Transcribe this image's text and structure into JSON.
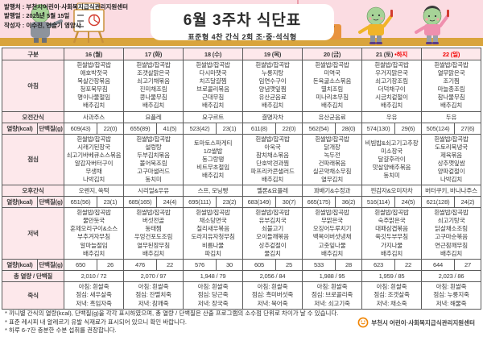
{
  "header": {
    "publisher_line": "발행처 : 부천시어린이·사회복지급식관리지원센터",
    "date_line": "발행일 : 2025년 5월 15일",
    "author_line": "작성자 : 이수진, 연슬기 영양사",
    "title": "6월 3주차 식단표",
    "subtitle": "표준형 4찬 간식 2회 조·중·석식형"
  },
  "colors": {
    "banner_pink": "#fbdce2",
    "floor_gold": "#d9a43c",
    "label_pink": "#fde8eb",
    "holiday_red": "#f20000",
    "logo_orange": "#f08300"
  },
  "table": {
    "corner_label": "구분",
    "row_labels": {
      "breakfast": "아침",
      "am_snack": "오전간식",
      "kcal": "열량(kcal)",
      "protein": "단백질(g)",
      "lunch": "점심",
      "pm_snack": "오후간식",
      "dinner": "저녁",
      "total": "총 열량 / 단백질",
      "porridge": "죽식"
    },
    "days": [
      {
        "date": "16 (월)",
        "red": false,
        "suffix": "",
        "breakfast": [
          "흰쌀밥/잡곡밥",
          "애호박젓국",
          "목살간장볶음",
          "청포묵무침",
          "명이나물절임",
          "배추김치"
        ],
        "am_snack": "사과주스",
        "kcal1": "609(43)",
        "protein1": "22(0)",
        "lunch": [
          "흰쌀밥/잡곡밥",
          "시래기된장국",
          "쇠고기바베큐소스볶음",
          "알감자버터구이",
          "무생채",
          "나박김치"
        ],
        "pm_snack": "오렌지, 쑥떡",
        "kcal2": "651(56)",
        "protein2": "23(1)",
        "dinner": [
          "흰쌀밥/잡곡밥",
          "물만둣국",
          "훈제오리구이&소스",
          "부추겨자무침",
          "알마늘절임",
          "배추김치"
        ],
        "kcal3": "650",
        "protein3": "26",
        "total": "2,010 / 72",
        "porridge": [
          "아침: 흰쌀죽",
          "점심: 새우살죽",
          "저녁: 흑임자죽"
        ]
      },
      {
        "date": "17 (화)",
        "red": false,
        "suffix": "",
        "breakfast": [
          "흰쌀밥/잡곡밥",
          "조갯살맑은국",
          "쇠고기채볶음",
          "진미채조림",
          "콩나물무침",
          "배추김치"
        ],
        "am_snack": "요플레",
        "kcal1": "655(89)",
        "protein1": "41(5)",
        "lunch": [
          "흰쌀밥/잡곡밥",
          "설렁탕",
          "두부김치볶음",
          "볼어묵조림",
          "고구마샐러드",
          "동치미"
        ],
        "pm_snack": "시리얼&우유",
        "kcal2": "685(165)",
        "protein2": "24(4)",
        "dinner": [
          "흰쌀밥/잡곡밥",
          "버섯전골",
          "동태찜",
          "우엉건포도조림",
          "열무된장무침",
          "배추김치"
        ],
        "kcal3": "476",
        "protein3": "22",
        "total": "2,070 / 97",
        "porridge": [
          "아침: 흰쌀죽",
          "점심: 잔멸치죽",
          "저녁: 참깨죽"
        ]
      },
      {
        "date": "18 (수)",
        "red": false,
        "suffix": "",
        "breakfast": [
          "흰쌀밥/잡곡밥",
          "다시마챗국",
          "치즈달걀찜",
          "브로콜리볶음",
          "근대무침",
          "배추김치"
        ],
        "am_snack": "요구르트",
        "kcal1": "523(42)",
        "protein1": "23(1)",
        "lunch": [
          "토마토스파게티",
          "1/2쌀밥",
          "동그랑땡",
          "비트무초절임",
          "배추김치"
        ],
        "pm_snack": "스프, 모닝빵",
        "kcal2": "695(111)",
        "protein2": "23(2)",
        "dinner": [
          "흰쌀밥/잡곡밥",
          "채소당면국",
          "칠리새우볶음",
          "도라지유자청무침",
          "비름나물",
          "파김치"
        ],
        "kcal3": "576",
        "protein3": "30",
        "total": "1,948 / 79",
        "porridge": [
          "아침: 흰쌀죽",
          "점심: 당근죽",
          "저녁: 장국죽"
        ]
      },
      {
        "date": "19 (목)",
        "red": false,
        "suffix": "",
        "breakfast": [
          "흰쌀밥/잡곡밥",
          "누룽지탕",
          "임연수구이",
          "양념깻잎찜",
          "유산균음료",
          "배추김치"
        ],
        "am_snack": "결명자차",
        "kcal1": "611(8)",
        "protein1": "22(0)",
        "lunch": [
          "흰쌀밥/잡곡밥",
          "아욱국",
          "참치채소볶음",
          "단호박견과찜",
          "파프리카콘샐러드",
          "배추김치"
        ],
        "pm_snack": "멜론&요플레",
        "kcal2": "683(149)",
        "protein2": "30(7)",
        "dinner": [
          "흰쌀밥/잡곡밥",
          "유부김치국",
          "쇠불고기",
          "오이들깨볶음",
          "상추겉절이",
          "물김치"
        ],
        "kcal3": "605",
        "protein3": "25",
        "total": "2,056 / 84",
        "porridge": [
          "아침: 흰쌀죽",
          "점심: 흑미버섯죽",
          "저녁: 북어죽"
        ]
      },
      {
        "date": "20 (금)",
        "red": false,
        "suffix": "",
        "breakfast": [
          "흰쌀밥/잡곡밥",
          "미역국",
          "돈육굴소스볶음",
          "멸치조림",
          "미나리초무침",
          "배추김치"
        ],
        "am_snack": "유산균음료",
        "kcal1": "562(54)",
        "protein1": "28(0)",
        "lunch": [
          "흰쌀밥/잡곡밥",
          "닭개장",
          "녹두전",
          "건파래볶음",
          "실곤약채소무침",
          "열무김치"
        ],
        "pm_snack": "꽈배기&수정과",
        "kcal2": "665(175)",
        "protein2": "36(2)",
        "dinner": [
          "흰쌀밥/잡곡밥",
          "무맑은국",
          "오징어두루치기",
          "백목이버섯냉채",
          "고춧잎나물",
          "배추김치"
        ],
        "kcal3": "533",
        "protein3": "28",
        "total": "1,988 / 95",
        "porridge": [
          "아침: 흰쌀죽",
          "점심: 브로콜리죽",
          "저녁: 쇠고기죽"
        ]
      },
      {
        "date": "21 (토)",
        "red": false,
        "suffix": "•하지",
        "breakfast": [
          "흰쌀밥/잡곡밥",
          "우거지맑은국",
          "쇠고기장조림",
          "더덕채구이",
          "시금치겉절이",
          "배추김치"
        ],
        "am_snack": "우유",
        "kcal1": "574(130)",
        "protein1": "29(6)",
        "lunch": [
          "비빔밥&쇠고기고추장",
          "미소장국",
          "달걀후라이",
          "맛살양배추볶음",
          "동치미"
        ],
        "pm_snack": "찐감자&오미자차",
        "kcal2": "516(114)",
        "protein2": "24(5)",
        "dinner": [
          "흰쌀밥/잡곡밥",
          "숙주맑은국",
          "대패삼겹볶음",
          "쑥갓두부무침",
          "가지나물",
          "배추김치"
        ],
        "kcal3": "623",
        "protein3": "22",
        "total": "1,959 / 85",
        "porridge": [
          "아침: 흰쌀죽",
          "점심: 조갯살죽",
          "저녁: 채소죽"
        ]
      },
      {
        "date": "22 (일)",
        "red": true,
        "suffix": "",
        "breakfast": [
          "흰쌀밥/잡곡밥",
          "열무맑은국",
          "조기찜",
          "마늘종조림",
          "참나물무침",
          "배추김치"
        ],
        "am_snack": "두유",
        "kcal1": "505(124)",
        "protein1": "27(6)",
        "lunch": [
          "흰쌀밥/잡곡밥",
          "도토리묵냉국",
          "제육볶음",
          "상추깻잎쌈",
          "양파겉절이",
          "나박김치"
        ],
        "pm_snack": "버터쿠키, 바나나주스",
        "kcal2": "621(128)",
        "protein2": "24(2)",
        "dinner": [
          "흰쌀밥/잡곡밥",
          "쇠고기탕국",
          "닭살채소조림",
          "고구마순볶음",
          "연근참깨무침",
          "배추김치"
        ],
        "kcal3": "644",
        "protein3": "27",
        "total": "2,023 / 86",
        "porridge": [
          "아침: 흰쌀죽",
          "점심: 누룽지죽",
          "저녁: 해물죽"
        ]
      }
    ]
  },
  "footer": {
    "notes": [
      "* 끼니별 간식의 열량(kcal), 단백질(g)을 각각 표시하였으며, 총 열량 / 단백질은 산출 프로그램의 소수점 단위로 차이가 날 수 있습니다.",
      "* 표준 레시피 내 알레르기 유발 식재료가 표시되어 있으니 확인 바랍니다.",
      "* 하루 6-7잔 충분한 수분 섭취를 권장합니다."
    ],
    "logo_text": "부천시 어린이·사회복지급식관리지원센터"
  }
}
